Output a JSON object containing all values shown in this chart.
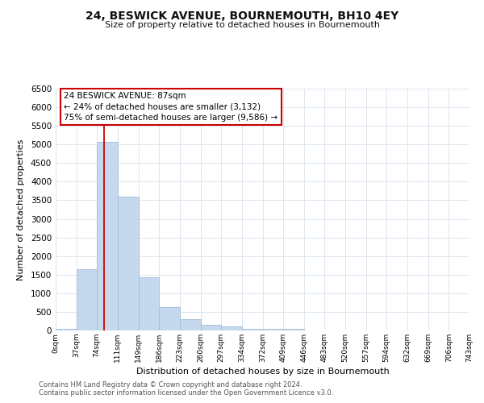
{
  "title": "24, BESWICK AVENUE, BOURNEMOUTH, BH10 4EY",
  "subtitle": "Size of property relative to detached houses in Bournemouth",
  "xlabel": "Distribution of detached houses by size in Bournemouth",
  "ylabel": "Number of detached properties",
  "bar_values": [
    50,
    1650,
    5080,
    3600,
    1420,
    620,
    300,
    150,
    100,
    50,
    50,
    50,
    0,
    0,
    0,
    0,
    0,
    0,
    0,
    0
  ],
  "bin_edges": [
    0,
    37,
    74,
    111,
    149,
    186,
    223,
    260,
    297,
    334,
    372,
    409,
    446,
    483,
    520,
    557,
    594,
    632,
    669,
    706,
    743
  ],
  "tick_labels": [
    "0sqm",
    "37sqm",
    "74sqm",
    "111sqm",
    "149sqm",
    "186sqm",
    "223sqm",
    "260sqm",
    "297sqm",
    "334sqm",
    "372sqm",
    "409sqm",
    "446sqm",
    "483sqm",
    "520sqm",
    "557sqm",
    "594sqm",
    "632sqm",
    "669sqm",
    "706sqm",
    "743sqm"
  ],
  "bar_color": "#c5d8ed",
  "bar_edge_color": "#a0bdd8",
  "vline_x": 87,
  "vline_color": "#cc0000",
  "ylim": [
    0,
    6500
  ],
  "yticks": [
    0,
    500,
    1000,
    1500,
    2000,
    2500,
    3000,
    3500,
    4000,
    4500,
    5000,
    5500,
    6000,
    6500
  ],
  "annotation_title": "24 BESWICK AVENUE: 87sqm",
  "annotation_line1": "← 24% of detached houses are smaller (3,132)",
  "annotation_line2": "75% of semi-detached houses are larger (9,586) →",
  "annotation_box_color": "#cc0000",
  "footer1": "Contains HM Land Registry data © Crown copyright and database right 2024.",
  "footer2": "Contains public sector information licensed under the Open Government Licence v3.0.",
  "background_color": "#ffffff",
  "grid_color": "#d0dcea"
}
